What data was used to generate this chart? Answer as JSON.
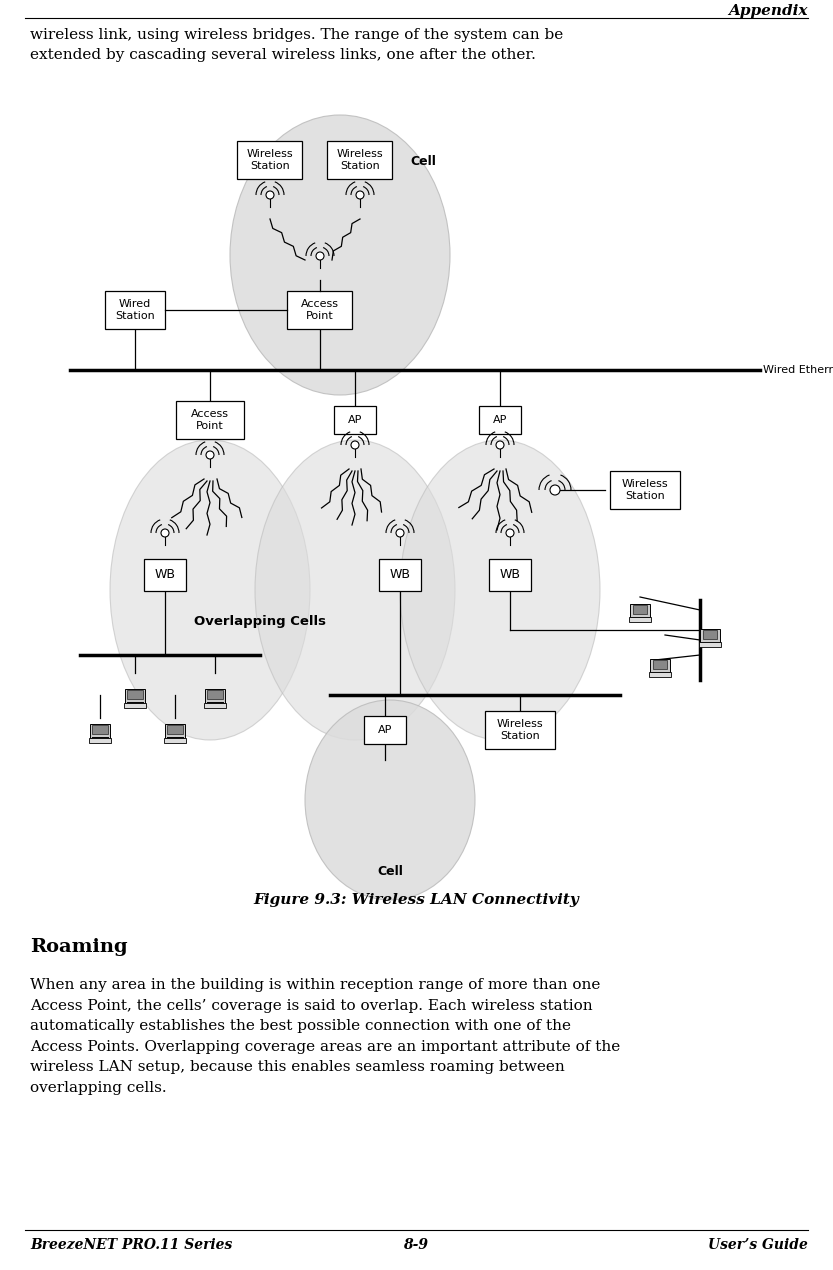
{
  "title_right": "Appendix",
  "footer_left": "BreezeNET PRO.11 Series",
  "footer_center": "8-9",
  "footer_right": "User’s Guide",
  "para1": "wireless link, using wireless bridges. The range of the system can be\nextended by cascading several wireless links, one after the other.",
  "figure_caption": "Figure 9.3: Wireless LAN Connectivity",
  "section_heading": "Roaming",
  "para2": "When any area in the building is within reception range of more than one\nAccess Point, the cells’ coverage is said to overlap. Each wireless station\nautomatically establishes the best possible connection with one of the\nAccess Points. Overlapping coverage areas are an important attribute of the\nwireless LAN setup, because this enables seamless roaming between\noverlapping cells.",
  "bg_color": "#ffffff",
  "text_color": "#000000"
}
